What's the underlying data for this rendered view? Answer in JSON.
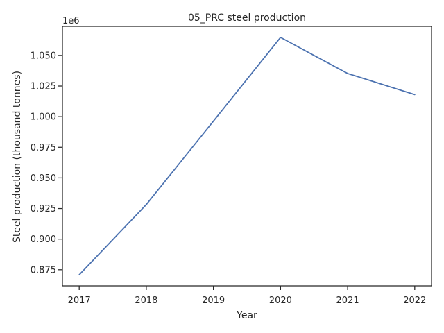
{
  "chart_data": {
    "type": "line",
    "title": "05_PRC steel production",
    "xlabel": "Year",
    "ylabel": "Steel production (thousand tonnes)",
    "offset_label": "1e6",
    "x": [
      2017,
      2018,
      2019,
      2020,
      2021,
      2022
    ],
    "x_ticks": [
      "2017",
      "2018",
      "2019",
      "2020",
      "2021",
      "2022"
    ],
    "series": [
      {
        "values": [
          870855,
          928264,
          996340,
          1064732,
          1035243,
          1018000
        ],
        "color": "#4c72b0"
      }
    ],
    "y_ticks": [
      {
        "value": 875000,
        "label": "0.875"
      },
      {
        "value": 900000,
        "label": "0.900"
      },
      {
        "value": 925000,
        "label": "0.925"
      },
      {
        "value": 950000,
        "label": "0.950"
      },
      {
        "value": 975000,
        "label": "0.975"
      },
      {
        "value": 1000000,
        "label": "1.000"
      },
      {
        "value": 1025000,
        "label": "1.025"
      },
      {
        "value": 1050000,
        "label": "1.050"
      }
    ],
    "xlim": [
      2016.75,
      2022.25
    ],
    "ylim": [
      861862,
      1073725
    ],
    "grid": false,
    "legend": "none"
  }
}
